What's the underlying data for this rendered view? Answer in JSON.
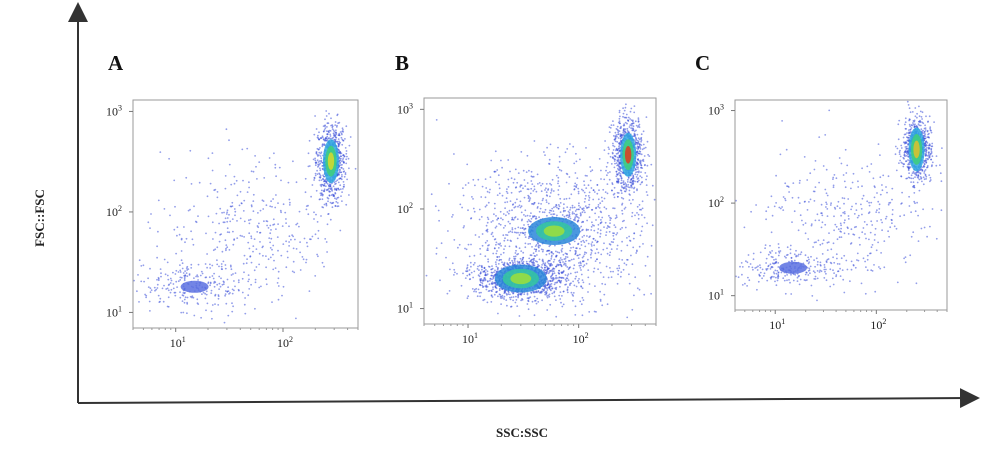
{
  "figure": {
    "x_title": "SSC:SSC",
    "y_title": "FSC::FSC"
  },
  "chart_data": [
    {
      "type": "scatter",
      "panel": "A",
      "xscale": "log",
      "yscale": "log",
      "xlim": [
        4,
        500
      ],
      "ylim": [
        7,
        1300
      ],
      "x_ticks": [
        {
          "base": "10",
          "exp": "1"
        },
        {
          "base": "10",
          "exp": "2"
        }
      ],
      "y_ticks": [
        {
          "base": "10",
          "exp": "1"
        },
        {
          "base": "10",
          "exp": "2"
        },
        {
          "base": "10",
          "exp": "3"
        }
      ],
      "density": "low",
      "populations": [
        {
          "center": [
            280,
            320
          ],
          "spread": [
            0.07,
            0.2
          ],
          "share": 0.55
        },
        {
          "center": [
            15,
            18
          ],
          "spread": [
            0.3,
            0.12
          ],
          "share": 0.2
        },
        {
          "center": [
            50,
            70
          ],
          "spread": [
            0.4,
            0.35
          ],
          "share": 0.25
        }
      ],
      "hotspot_color": "#d9d92a"
    },
    {
      "type": "scatter",
      "panel": "B",
      "xscale": "log",
      "yscale": "log",
      "xlim": [
        4,
        500
      ],
      "ylim": [
        7,
        1300
      ],
      "x_ticks": [
        {
          "base": "10",
          "exp": "1"
        },
        {
          "base": "10",
          "exp": "2"
        }
      ],
      "y_ticks": [
        {
          "base": "10",
          "exp": "1"
        },
        {
          "base": "10",
          "exp": "2"
        },
        {
          "base": "10",
          "exp": "3"
        }
      ],
      "density": "high",
      "populations": [
        {
          "center": [
            280,
            350
          ],
          "spread": [
            0.07,
            0.18
          ],
          "share": 0.25
        },
        {
          "center": [
            30,
            20
          ],
          "spread": [
            0.2,
            0.1
          ],
          "share": 0.35
        },
        {
          "center": [
            60,
            60
          ],
          "spread": [
            0.45,
            0.35
          ],
          "share": 0.4
        }
      ],
      "hotspot_color": "#e23a1e"
    },
    {
      "type": "scatter",
      "panel": "C",
      "xscale": "log",
      "yscale": "log",
      "xlim": [
        4,
        500
      ],
      "ylim": [
        7,
        1300
      ],
      "x_ticks": [
        {
          "base": "10",
          "exp": "1"
        },
        {
          "base": "10",
          "exp": "2"
        }
      ],
      "y_ticks": [
        {
          "base": "10",
          "exp": "1"
        },
        {
          "base": "10",
          "exp": "2"
        },
        {
          "base": "10",
          "exp": "3"
        }
      ],
      "density": "low",
      "populations": [
        {
          "center": [
            250,
            380
          ],
          "spread": [
            0.07,
            0.17
          ],
          "share": 0.55
        },
        {
          "center": [
            15,
            20
          ],
          "spread": [
            0.3,
            0.1
          ],
          "share": 0.2
        },
        {
          "center": [
            50,
            70
          ],
          "spread": [
            0.4,
            0.35
          ],
          "share": 0.25
        }
      ],
      "hotspot_color": "#e0c02a"
    }
  ]
}
